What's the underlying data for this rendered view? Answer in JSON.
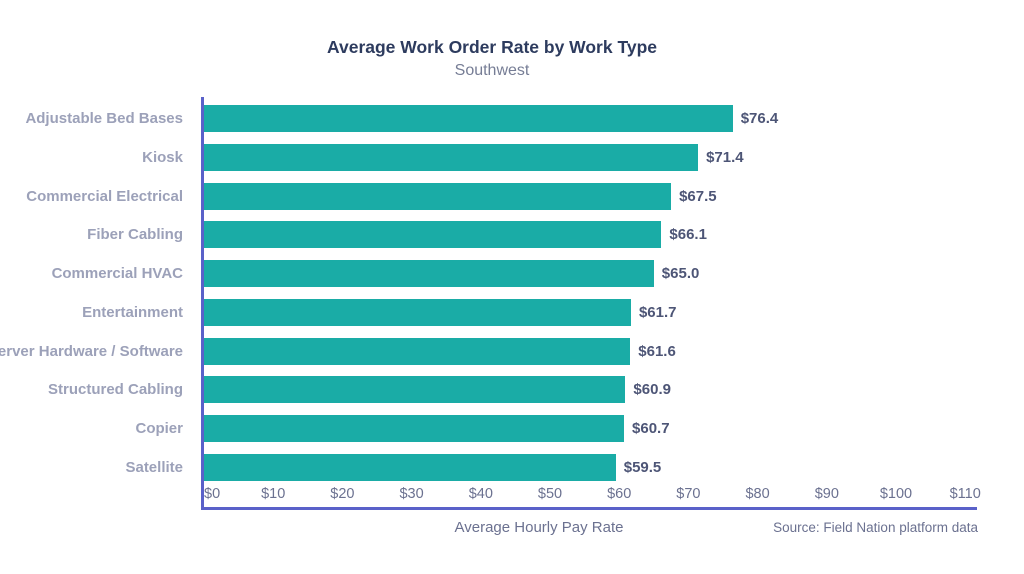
{
  "chart_data": {
    "type": "bar",
    "orientation": "horizontal",
    "title": "Average Work Order Rate by Work Type",
    "subtitle": "Southwest",
    "xlabel": "Average Hourly Pay Rate",
    "source": "Source: Field Nation platform data",
    "categories": [
      "Adjustable Bed Bases",
      "Kiosk",
      "Commercial Electrical",
      "Fiber Cabling",
      "Commercial HVAC",
      "Entertainment",
      "Server Hardware / Software",
      "Structured Cabling",
      "Copier",
      "Satellite"
    ],
    "values": [
      76.4,
      71.4,
      67.5,
      66.1,
      65.0,
      61.7,
      61.6,
      60.9,
      60.7,
      59.5
    ],
    "value_labels": [
      "$76.4",
      "$71.4",
      "$67.5",
      "$66.1",
      "$65.0",
      "$61.7",
      "$61.6",
      "$60.9",
      "$60.7",
      "$59.5"
    ],
    "xlim": [
      0,
      110
    ],
    "x_ticks": [
      0,
      10,
      20,
      30,
      40,
      50,
      60,
      70,
      80,
      90,
      100,
      110
    ],
    "x_tick_labels": [
      "$0",
      "$10",
      "$20",
      "$30",
      "$40",
      "$50",
      "$60",
      "$70",
      "$80",
      "$90",
      "$100",
      "$110"
    ],
    "grid": "off",
    "legend": "none",
    "colors": {
      "bar": "#1aaca6",
      "axis": "#5a61c9",
      "title_text": "#2d3b5e",
      "subtitle_text": "#767d95",
      "category_text": "#9ca1b9",
      "value_text": "#4d5576",
      "tick_text": "#6b7190"
    }
  }
}
